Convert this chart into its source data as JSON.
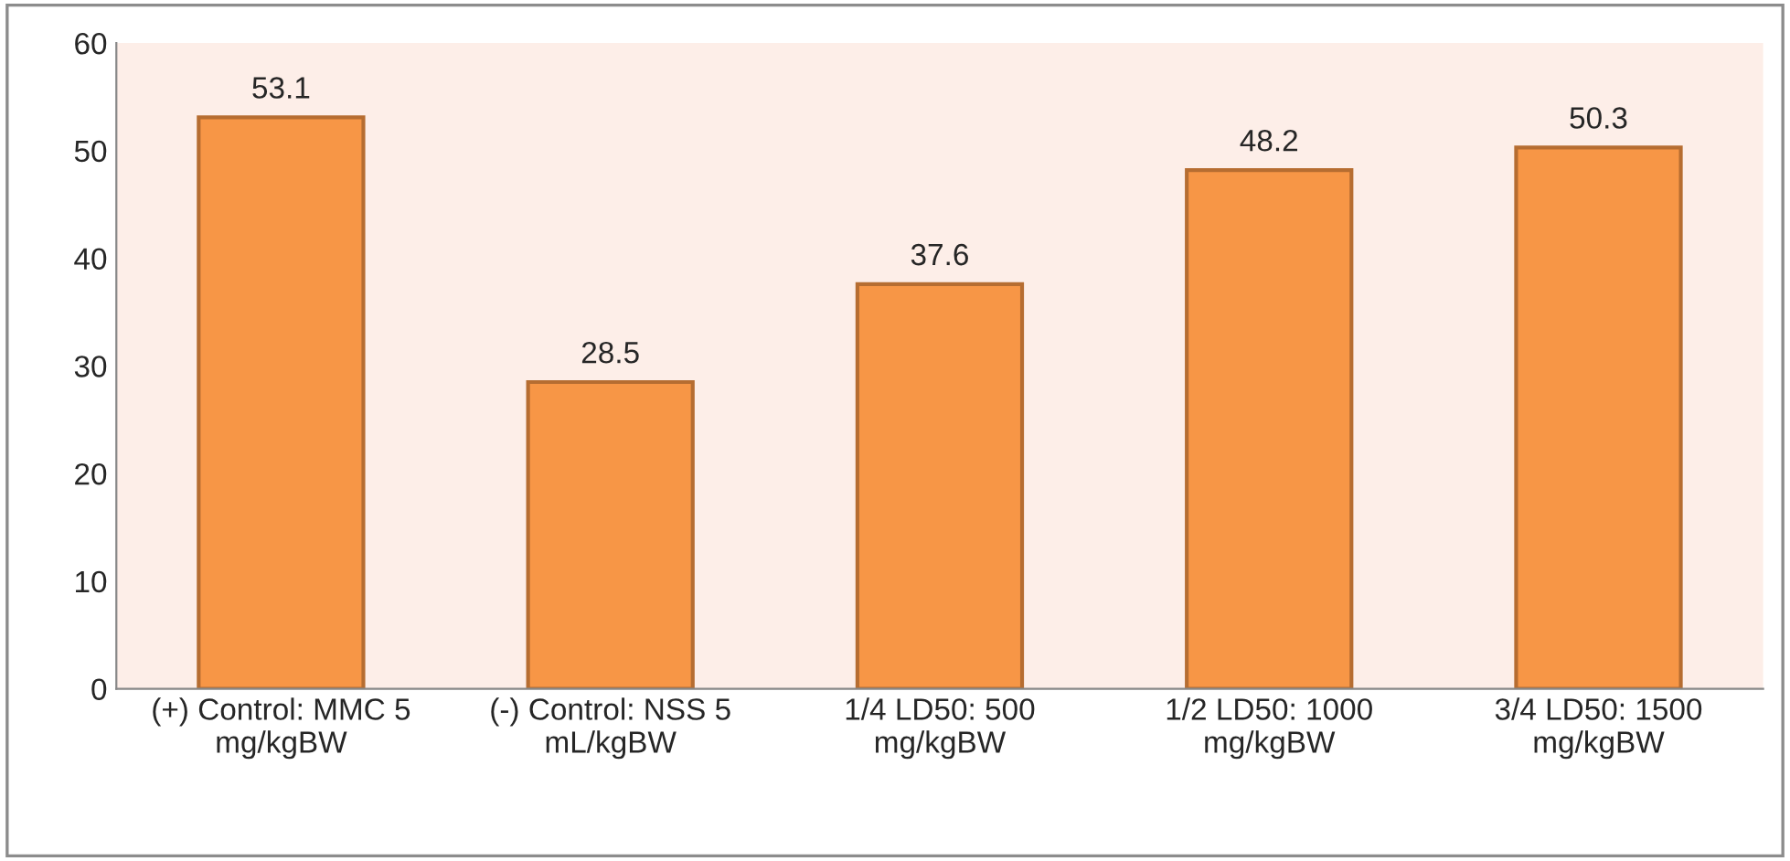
{
  "chart_data": {
    "type": "bar",
    "categories": [
      "(+) Control: MMC 5\nmg/kgBW",
      "(-) Control: NSS 5\nmL/kgBW",
      "1/4 LD50: 500\nmg/kgBW",
      "1/2 LD50: 1000\nmg/kgBW",
      "3/4 LD50: 1500\nmg/kgBW"
    ],
    "values": [
      53.1,
      28.5,
      37.6,
      48.2,
      50.3
    ],
    "color": "#f79646",
    "ylim": [
      0,
      60
    ],
    "yticks": [
      0,
      10,
      20,
      30,
      40,
      50,
      60
    ],
    "data_labels": true,
    "grid": false,
    "legend": false
  }
}
